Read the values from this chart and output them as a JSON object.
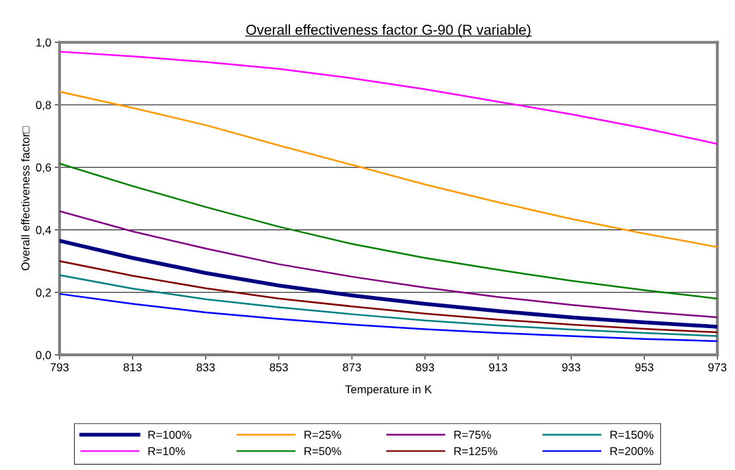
{
  "chart_data": {
    "type": "line",
    "title": "Overall effectiveness factor G-90 (R variable)",
    "xlabel": "Temperature in K",
    "ylabel": "Overall effectiveness factor□",
    "x": [
      793,
      813,
      833,
      853,
      873,
      893,
      913,
      933,
      953,
      973
    ],
    "xlim": [
      793,
      973
    ],
    "xticks": [
      793,
      813,
      833,
      853,
      873,
      893,
      913,
      933,
      953,
      973
    ],
    "ylim": [
      0,
      1
    ],
    "yticks": [
      {
        "value": 0,
        "label": "0,0"
      },
      {
        "value": 0.2,
        "label": "0,2"
      },
      {
        "value": 0.4,
        "label": "0,4"
      },
      {
        "value": 0.6,
        "label": "0,6"
      },
      {
        "value": 0.8,
        "label": "0,8"
      },
      {
        "value": 1,
        "label": "1,0"
      }
    ],
    "grid": "y",
    "legend": "bottom",
    "marker": "none",
    "line_style": "solid",
    "series": [
      {
        "name": "R=100%",
        "color": "#000080",
        "values": [
          0.365,
          0.31,
          0.262,
          0.222,
          0.19,
          0.163,
          0.14,
          0.12,
          0.104,
          0.09
        ]
      },
      {
        "name": "R=10%",
        "color": "#ff00ff",
        "values": [
          0.97,
          0.955,
          0.937,
          0.915,
          0.885,
          0.85,
          0.81,
          0.77,
          0.725,
          0.675
        ]
      },
      {
        "name": "R=25%",
        "color": "#ff9900",
        "values": [
          0.842,
          0.79,
          0.735,
          0.67,
          0.608,
          0.545,
          0.488,
          0.435,
          0.388,
          0.345
        ]
      },
      {
        "name": "R=50%",
        "color": "#008000",
        "values": [
          0.612,
          0.54,
          0.473,
          0.41,
          0.355,
          0.31,
          0.272,
          0.237,
          0.207,
          0.18
        ]
      },
      {
        "name": "R=75%",
        "color": "#800080",
        "values": [
          0.46,
          0.395,
          0.34,
          0.29,
          0.25,
          0.215,
          0.185,
          0.16,
          0.138,
          0.12
        ]
      },
      {
        "name": "R=125%",
        "color": "#800000",
        "values": [
          0.3,
          0.253,
          0.213,
          0.18,
          0.155,
          0.132,
          0.113,
          0.097,
          0.083,
          0.072
        ]
      },
      {
        "name": "R=150%",
        "color": "#008080",
        "values": [
          0.255,
          0.212,
          0.178,
          0.152,
          0.13,
          0.11,
          0.094,
          0.081,
          0.07,
          0.06
        ]
      },
      {
        "name": "R=200%",
        "color": "#0000ff",
        "values": [
          0.195,
          0.163,
          0.136,
          0.115,
          0.097,
          0.082,
          0.07,
          0.06,
          0.051,
          0.044
        ]
      }
    ]
  }
}
